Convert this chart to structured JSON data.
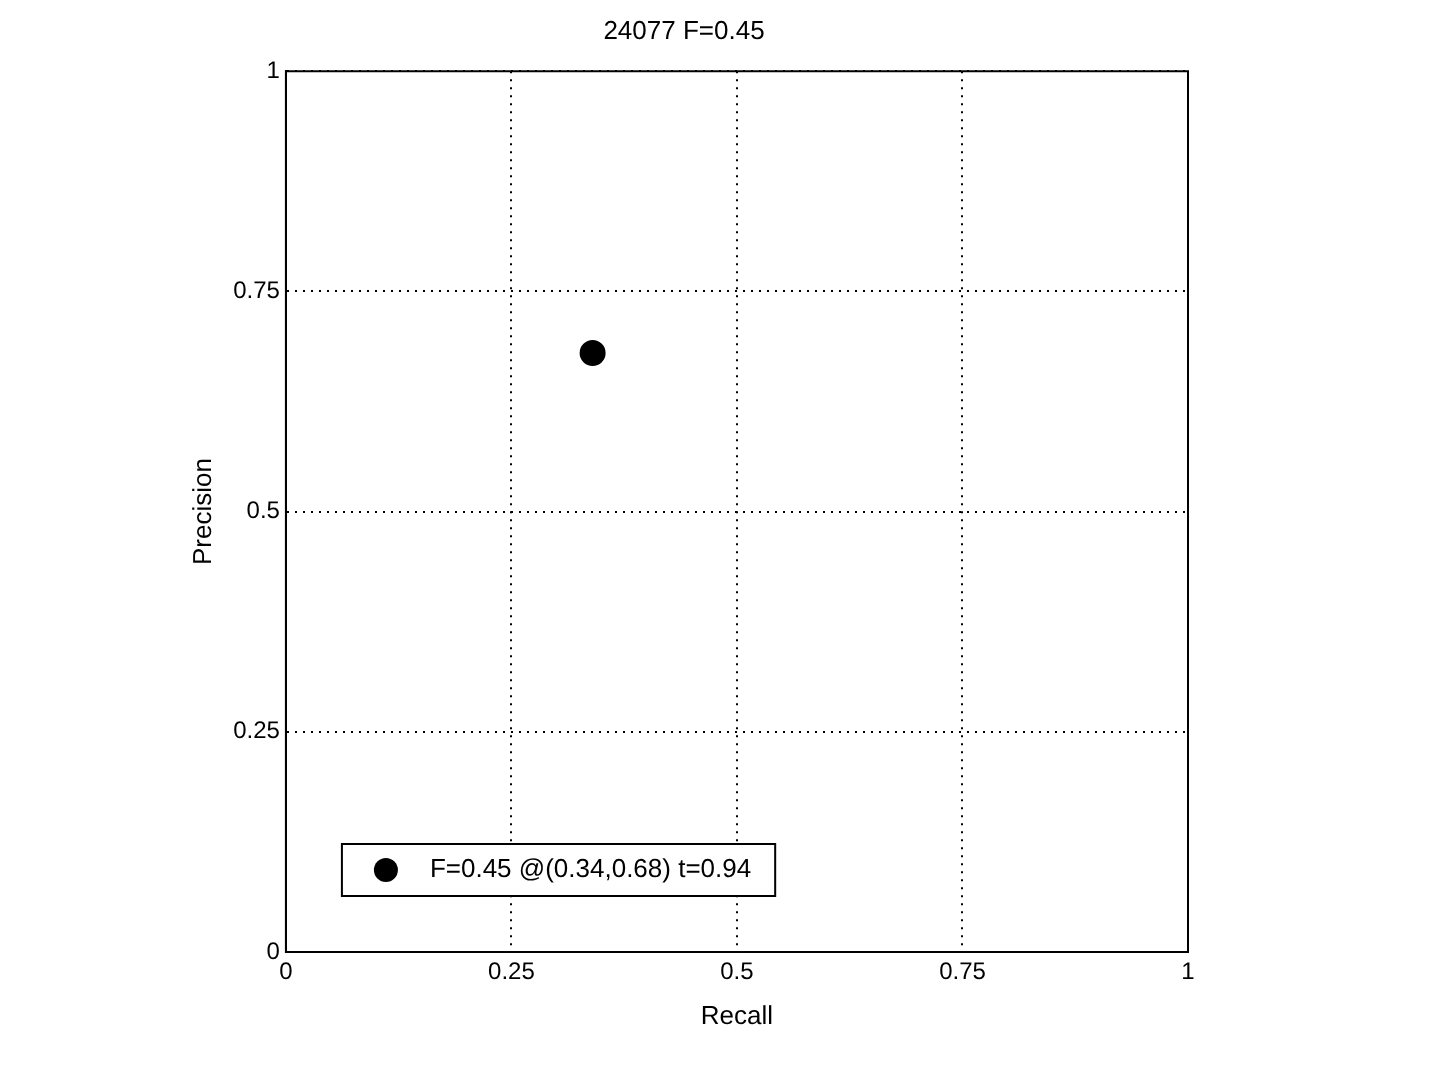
{
  "chart_data": {
    "type": "scatter",
    "title": "24077 F=0.45",
    "xlabel": "Recall",
    "ylabel": "Precision",
    "series": [
      {
        "name": "F=0.45 @(0.34,0.68) t=0.94",
        "color": "#000000",
        "x": [
          0.34
        ],
        "values": [
          0.68
        ]
      }
    ],
    "xlim": [
      0,
      1
    ],
    "ylim": [
      0,
      1
    ],
    "xticks": [
      0,
      0.25,
      0.5,
      0.75,
      1
    ],
    "yticks": [
      0,
      0.25,
      0.5,
      0.75,
      1
    ],
    "grid": true,
    "legend": "bottom left",
    "marker": "circle"
  }
}
